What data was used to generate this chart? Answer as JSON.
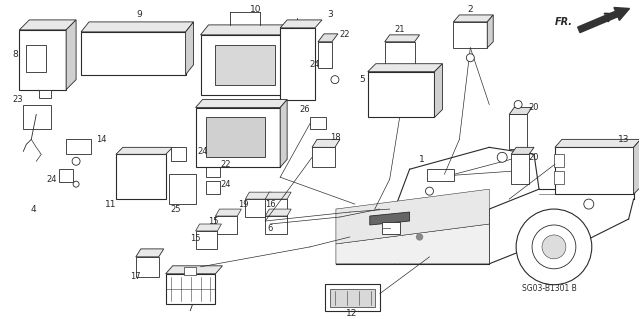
{
  "bg_color": "#ffffff",
  "line_color": "#2a2a2a",
  "gray_color": "#888888",
  "light_gray": "#cccccc",
  "fig_w": 6.4,
  "fig_h": 3.19,
  "dpi": 100
}
